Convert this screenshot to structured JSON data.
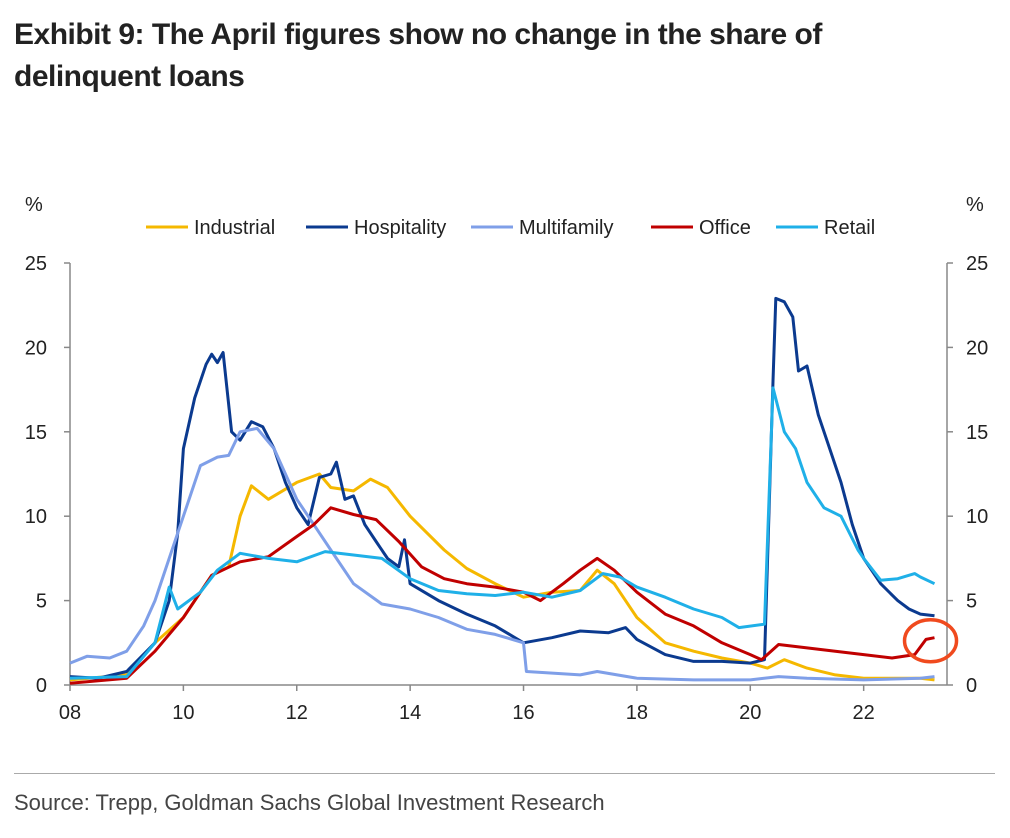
{
  "title": "Exhibit 9: The April figures show no change in the share of delinquent loans",
  "source": "Source: Trepp, Goldman Sachs Global Investment Research",
  "chart_data": {
    "type": "line",
    "title": "Exhibit 9: The April figures show no change in the share of delinquent loans",
    "ylabel_left": "%",
    "ylabel_right": "%",
    "xlim": [
      2008,
      2023.47
    ],
    "ylim": [
      0,
      25
    ],
    "yticks": [
      0,
      5,
      10,
      15,
      20,
      25
    ],
    "xticks": [
      2008,
      2010,
      2012,
      2014,
      2016,
      2018,
      2020,
      2022
    ],
    "xtick_labels": [
      "08",
      "10",
      "12",
      "14",
      "16",
      "18",
      "20",
      "22"
    ],
    "legend_placement": "top",
    "annotation": "red circle highlighting latest Office value",
    "series": [
      {
        "name": "Industrial",
        "color": "#f5b800",
        "points": [
          [
            2008,
            0.3
          ],
          [
            2009,
            0.6
          ],
          [
            2009.5,
            2.5
          ],
          [
            2010,
            4
          ],
          [
            2010.5,
            6.5
          ],
          [
            2010.8,
            7
          ],
          [
            2011,
            10
          ],
          [
            2011.2,
            11.8
          ],
          [
            2011.5,
            11
          ],
          [
            2012,
            12
          ],
          [
            2012.4,
            12.5
          ],
          [
            2012.6,
            11.7
          ],
          [
            2013,
            11.5
          ],
          [
            2013.3,
            12.2
          ],
          [
            2013.6,
            11.7
          ],
          [
            2014,
            10
          ],
          [
            2014.3,
            9
          ],
          [
            2014.6,
            8
          ],
          [
            2015,
            6.9
          ],
          [
            2015.5,
            6
          ],
          [
            2016,
            5.2
          ],
          [
            2016.5,
            5.5
          ],
          [
            2017,
            5.6
          ],
          [
            2017.3,
            6.8
          ],
          [
            2017.6,
            6
          ],
          [
            2018,
            4
          ],
          [
            2018.5,
            2.5
          ],
          [
            2019,
            2
          ],
          [
            2019.5,
            1.6
          ],
          [
            2020,
            1.3
          ],
          [
            2020.3,
            1.0
          ],
          [
            2020.6,
            1.5
          ],
          [
            2021,
            1.0
          ],
          [
            2021.5,
            0.6
          ],
          [
            2022,
            0.4
          ],
          [
            2023,
            0.4
          ],
          [
            2023.25,
            0.3
          ]
        ]
      },
      {
        "name": "Hospitality",
        "color": "#0b3a8f",
        "points": [
          [
            2008,
            0.5
          ],
          [
            2008.5,
            0.4
          ],
          [
            2009,
            0.8
          ],
          [
            2009.5,
            2.5
          ],
          [
            2009.75,
            5
          ],
          [
            2009.9,
            9
          ],
          [
            2010,
            14
          ],
          [
            2010.2,
            17
          ],
          [
            2010.4,
            19
          ],
          [
            2010.5,
            19.6
          ],
          [
            2010.6,
            19.1
          ],
          [
            2010.7,
            19.7
          ],
          [
            2010.85,
            15
          ],
          [
            2011,
            14.5
          ],
          [
            2011.2,
            15.6
          ],
          [
            2011.4,
            15.3
          ],
          [
            2011.6,
            14
          ],
          [
            2011.8,
            12
          ],
          [
            2012,
            10.5
          ],
          [
            2012.2,
            9.5
          ],
          [
            2012.4,
            12.3
          ],
          [
            2012.6,
            12.5
          ],
          [
            2012.7,
            13.2
          ],
          [
            2012.85,
            11
          ],
          [
            2013,
            11.2
          ],
          [
            2013.2,
            9.5
          ],
          [
            2013.4,
            8.5
          ],
          [
            2013.6,
            7.5
          ],
          [
            2013.8,
            7
          ],
          [
            2013.9,
            8.6
          ],
          [
            2014,
            6
          ],
          [
            2014.5,
            5
          ],
          [
            2015,
            4.2
          ],
          [
            2015.5,
            3.5
          ],
          [
            2016,
            2.5
          ],
          [
            2016.5,
            2.8
          ],
          [
            2017,
            3.2
          ],
          [
            2017.5,
            3.1
          ],
          [
            2017.8,
            3.4
          ],
          [
            2018,
            2.7
          ],
          [
            2018.5,
            1.8
          ],
          [
            2019,
            1.4
          ],
          [
            2019.5,
            1.4
          ],
          [
            2020,
            1.3
          ],
          [
            2020.25,
            1.5
          ],
          [
            2020.4,
            18
          ],
          [
            2020.45,
            22.9
          ],
          [
            2020.6,
            22.7
          ],
          [
            2020.75,
            21.8
          ],
          [
            2020.85,
            18.6
          ],
          [
            2021,
            18.9
          ],
          [
            2021.2,
            16
          ],
          [
            2021.4,
            14
          ],
          [
            2021.6,
            12
          ],
          [
            2021.8,
            9.5
          ],
          [
            2022,
            7.5
          ],
          [
            2022.3,
            6
          ],
          [
            2022.6,
            5
          ],
          [
            2022.8,
            4.5
          ],
          [
            2023,
            4.2
          ],
          [
            2023.25,
            4.1
          ]
        ]
      },
      {
        "name": "Multifamily",
        "color": "#7f9fe8",
        "points": [
          [
            2008,
            1.3
          ],
          [
            2008.3,
            1.7
          ],
          [
            2008.7,
            1.6
          ],
          [
            2009,
            2
          ],
          [
            2009.3,
            3.5
          ],
          [
            2009.5,
            5
          ],
          [
            2009.75,
            7.5
          ],
          [
            2010,
            10
          ],
          [
            2010.3,
            13
          ],
          [
            2010.6,
            13.5
          ],
          [
            2010.8,
            13.6
          ],
          [
            2011,
            15
          ],
          [
            2011.3,
            15.2
          ],
          [
            2011.6,
            14
          ],
          [
            2012,
            11
          ],
          [
            2012.3,
            9.5
          ],
          [
            2012.6,
            8
          ],
          [
            2013,
            6
          ],
          [
            2013.5,
            4.8
          ],
          [
            2014,
            4.5
          ],
          [
            2014.5,
            4
          ],
          [
            2015,
            3.3
          ],
          [
            2015.5,
            3
          ],
          [
            2016,
            2.5
          ],
          [
            2016.05,
            0.8
          ],
          [
            2017,
            0.6
          ],
          [
            2017.3,
            0.8
          ],
          [
            2018,
            0.4
          ],
          [
            2019,
            0.3
          ],
          [
            2020,
            0.3
          ],
          [
            2020.5,
            0.5
          ],
          [
            2021,
            0.4
          ],
          [
            2022,
            0.3
          ],
          [
            2023,
            0.4
          ],
          [
            2023.25,
            0.5
          ]
        ]
      },
      {
        "name": "Office",
        "color": "#c00000",
        "points": [
          [
            2008,
            0.1
          ],
          [
            2009,
            0.4
          ],
          [
            2009.5,
            2
          ],
          [
            2010,
            4
          ],
          [
            2010.5,
            6.5
          ],
          [
            2011,
            7.3
          ],
          [
            2011.5,
            7.6
          ],
          [
            2012,
            8.8
          ],
          [
            2012.3,
            9.5
          ],
          [
            2012.6,
            10.5
          ],
          [
            2013,
            10.1
          ],
          [
            2013.4,
            9.8
          ],
          [
            2013.8,
            8.5
          ],
          [
            2014.2,
            7
          ],
          [
            2014.6,
            6.3
          ],
          [
            2015,
            6
          ],
          [
            2015.5,
            5.8
          ],
          [
            2016,
            5.5
          ],
          [
            2016.3,
            5.0
          ],
          [
            2016.7,
            6
          ],
          [
            2017,
            6.8
          ],
          [
            2017.3,
            7.5
          ],
          [
            2017.6,
            6.8
          ],
          [
            2018,
            5.5
          ],
          [
            2018.5,
            4.2
          ],
          [
            2019,
            3.5
          ],
          [
            2019.5,
            2.5
          ],
          [
            2020,
            1.8
          ],
          [
            2020.2,
            1.5
          ],
          [
            2020.5,
            2.4
          ],
          [
            2021,
            2.2
          ],
          [
            2021.5,
            2.0
          ],
          [
            2022,
            1.8
          ],
          [
            2022.5,
            1.6
          ],
          [
            2022.9,
            1.8
          ],
          [
            2023.1,
            2.7
          ],
          [
            2023.25,
            2.8
          ]
        ]
      },
      {
        "name": "Retail",
        "color": "#1fb0e8",
        "points": [
          [
            2008,
            0.4
          ],
          [
            2009,
            0.5
          ],
          [
            2009.5,
            2.5
          ],
          [
            2009.75,
            5.8
          ],
          [
            2009.9,
            4.5
          ],
          [
            2010.3,
            5.5
          ],
          [
            2010.6,
            6.8
          ],
          [
            2011,
            7.8
          ],
          [
            2011.5,
            7.5
          ],
          [
            2012,
            7.3
          ],
          [
            2012.5,
            7.9
          ],
          [
            2013,
            7.7
          ],
          [
            2013.5,
            7.5
          ],
          [
            2014,
            6.3
          ],
          [
            2014.5,
            5.6
          ],
          [
            2015,
            5.4
          ],
          [
            2015.5,
            5.3
          ],
          [
            2016,
            5.5
          ],
          [
            2016.5,
            5.2
          ],
          [
            2017,
            5.6
          ],
          [
            2017.4,
            6.6
          ],
          [
            2017.7,
            6.4
          ],
          [
            2018,
            5.8
          ],
          [
            2018.5,
            5.2
          ],
          [
            2019,
            4.5
          ],
          [
            2019.5,
            4
          ],
          [
            2019.8,
            3.4
          ],
          [
            2020.25,
            3.6
          ],
          [
            2020.4,
            17.6
          ],
          [
            2020.6,
            15
          ],
          [
            2020.8,
            14
          ],
          [
            2021,
            12
          ],
          [
            2021.3,
            10.5
          ],
          [
            2021.6,
            10
          ],
          [
            2021.9,
            8
          ],
          [
            2022,
            7.5
          ],
          [
            2022.3,
            6.2
          ],
          [
            2022.6,
            6.3
          ],
          [
            2022.9,
            6.6
          ],
          [
            2023,
            6.4
          ],
          [
            2023.25,
            6.0
          ]
        ]
      }
    ]
  }
}
